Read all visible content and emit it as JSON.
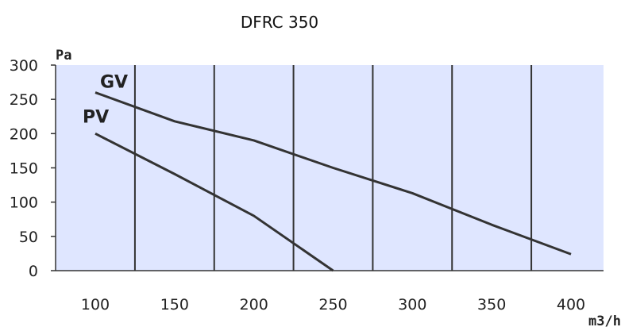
{
  "chart_data": {
    "type": "line",
    "title": "DFRC 350",
    "xlabel": "m3/h",
    "ylabel": "Pa",
    "xlim": [
      70,
      420
    ],
    "ylim": [
      0,
      300
    ],
    "x_ticks": [
      100,
      150,
      200,
      250,
      300,
      350,
      400
    ],
    "y_ticks": [
      0,
      50,
      100,
      150,
      200,
      250,
      300
    ],
    "vertical_grid_x": [
      125,
      175,
      225,
      275,
      325,
      375
    ],
    "grid": true,
    "series": [
      {
        "name": "GV",
        "color": "#333333",
        "x": [
          100,
          150,
          200,
          250,
          300,
          350,
          400
        ],
        "y": [
          260,
          218,
          190,
          150,
          113,
          67,
          24
        ]
      },
      {
        "name": "PV",
        "color": "#333333",
        "x": [
          100,
          150,
          200,
          250
        ],
        "y": [
          200,
          141,
          80,
          0
        ]
      }
    ]
  },
  "colors": {
    "plot_background": "#dfe6ff",
    "grid_line": "#333333",
    "axis_line": "#333333"
  }
}
